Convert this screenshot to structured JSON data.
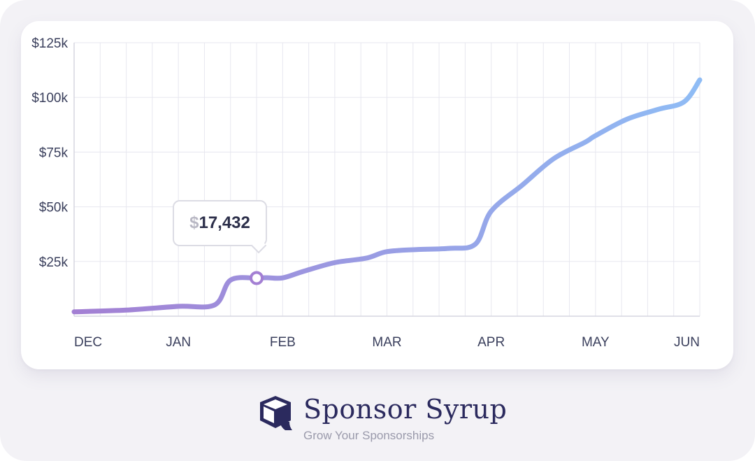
{
  "chart_data": {
    "type": "line",
    "title": "",
    "xlabel": "",
    "ylabel": "",
    "categories": [
      "DEC",
      "JAN",
      "FEB",
      "MAR",
      "APR",
      "MAY",
      "JUN"
    ],
    "x": [
      0,
      0.5,
      1,
      1.35,
      1.5,
      1.75,
      1.85,
      2,
      2.2,
      2.5,
      2.8,
      3,
      3.3,
      3.6,
      3.85,
      4,
      4.3,
      4.6,
      4.9,
      5,
      5.3,
      5.6,
      5.85,
      6
    ],
    "y": [
      2000,
      2800,
      4500,
      5200,
      16500,
      17432,
      17600,
      17500,
      20500,
      24500,
      26500,
      29500,
      30500,
      31000,
      33000,
      48000,
      60000,
      72000,
      79500,
      82500,
      90000,
      94500,
      98000,
      108000
    ],
    "ylim": [
      0,
      125000
    ],
    "yticks": [
      "$125k",
      "$100k",
      "$75k",
      "$50k",
      "$25k"
    ],
    "grid": true,
    "highlight": {
      "label_currency": "$",
      "label_value": "17,432",
      "index": 5
    },
    "colors": {
      "line_start": "#a37fd3",
      "line_end": "#8fbcf5",
      "grid": "#e7e7ef",
      "axis": "#d6d6e0"
    }
  },
  "brand": {
    "name": "Sponsor Syrup",
    "tagline": "Grow Your Sponsorships",
    "logo_icon": "syrup-box-icon",
    "color": "#2b2a5e"
  }
}
